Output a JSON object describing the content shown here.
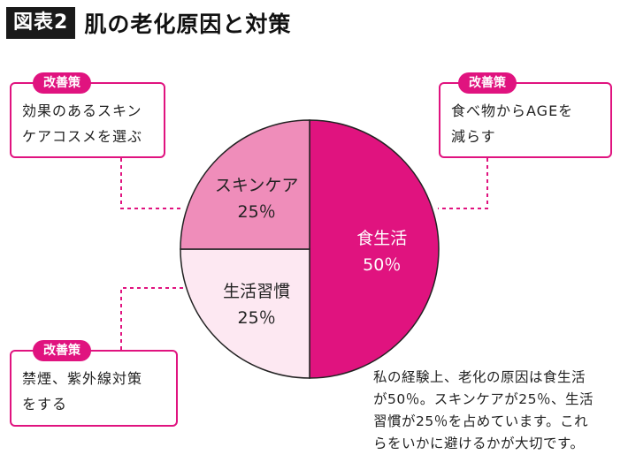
{
  "header": {
    "badge": "図表2",
    "title": "肌の老化原因と対策"
  },
  "callouts": [
    {
      "tag": "改善策",
      "lines": [
        "効果のあるスキン",
        "ケアコスメを選ぶ"
      ]
    },
    {
      "tag": "改善策",
      "lines": [
        "食べ物からAGEを",
        "減らす"
      ]
    },
    {
      "tag": "改善策",
      "lines": [
        "禁煙、紫外線対策",
        "をする"
      ]
    }
  ],
  "note": {
    "lines": [
      "私の経験上、老化の原因は食生活",
      "が50％。スキンケアが25％、生活",
      "習慣が25％を占めています。これ",
      "らをいかに避けるかが大切です。"
    ]
  },
  "chart_data": {
    "type": "pie",
    "title": "肌の老化原因と対策",
    "slices": [
      {
        "name": "食生活",
        "value": 50,
        "label": "50％",
        "color": "#e0137f",
        "text_color": "#ffffff"
      },
      {
        "name": "生活習慣",
        "value": 25,
        "label": "25％",
        "color": "#fde8f2",
        "text_color": "#222222"
      },
      {
        "name": "スキンケア",
        "value": 25,
        "label": "25％",
        "color": "#ef8dba",
        "text_color": "#222222"
      }
    ]
  }
}
